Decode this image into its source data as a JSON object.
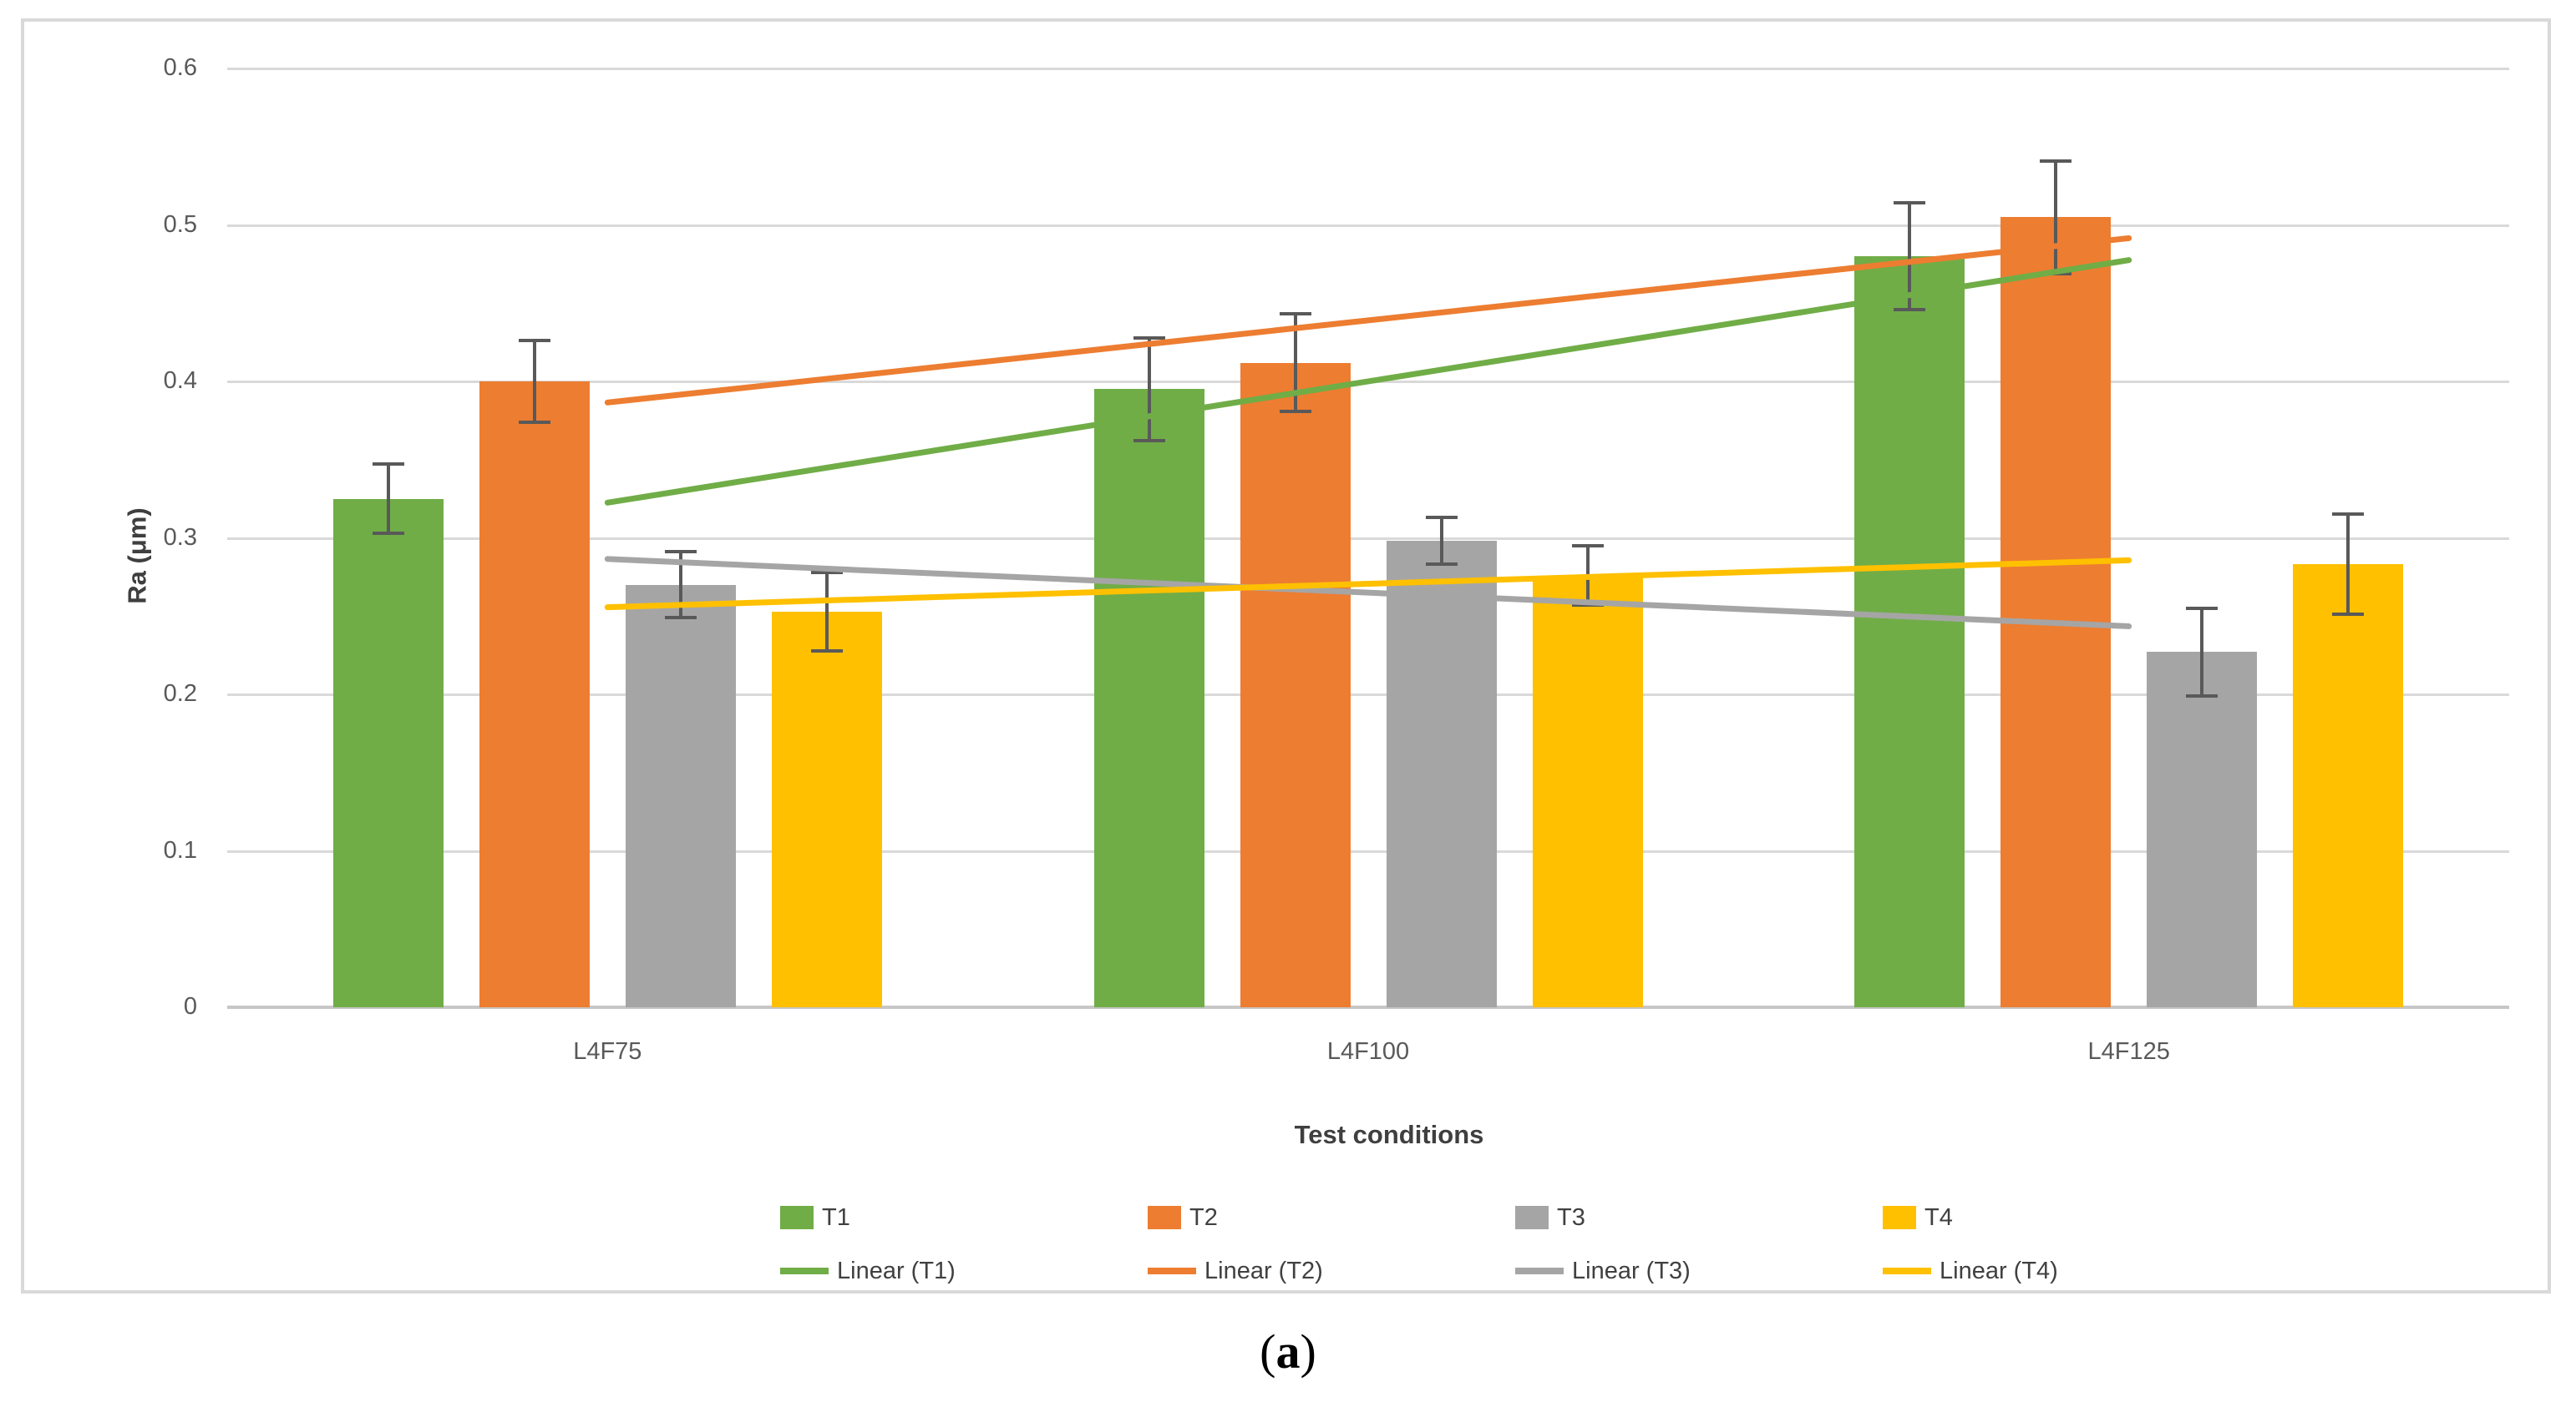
{
  "figure": {
    "caption_open": "(",
    "caption_letter": "a",
    "caption_close": ")"
  },
  "chart_data": {
    "type": "bar",
    "title": "",
    "xlabel": "Test conditions",
    "ylabel": "Ra (μm)",
    "categories": [
      "L4F75",
      "L4F100",
      "L4F125"
    ],
    "series": [
      {
        "name": "T1",
        "color": "#70AD47",
        "values": [
          0.325,
          0.395,
          0.48
        ],
        "errors_plus_minus": [
          0.022,
          0.033,
          0.034
        ],
        "trendline_label": "Linear (T1)"
      },
      {
        "name": "T2",
        "color": "#ED7D31",
        "values": [
          0.4,
          0.412,
          0.505
        ],
        "errors_plus_minus": [
          0.026,
          0.031,
          0.036
        ],
        "trendline_label": "Linear (T2)"
      },
      {
        "name": "T3",
        "color": "#A5A5A5",
        "values": [
          0.27,
          0.298,
          0.227
        ],
        "errors_plus_minus": [
          0.021,
          0.015,
          0.028
        ],
        "trendline_label": "Linear (T3)"
      },
      {
        "name": "T4",
        "color": "#FFC000",
        "values": [
          0.253,
          0.276,
          0.283
        ],
        "errors_plus_minus": [
          0.025,
          0.019,
          0.032
        ],
        "trendline_label": "Linear (T4)"
      }
    ],
    "trendlines": "linear",
    "ylim": [
      0,
      0.6
    ],
    "ytick_step": 0.1,
    "ytick_labels": [
      "0",
      "0.1",
      "0.2",
      "0.3",
      "0.4",
      "0.5",
      "0.6"
    ],
    "grid": true,
    "legend_position": "bottom"
  },
  "colors": {
    "gridline": "#D9D9D9",
    "axis_line": "#C6C6C6",
    "tick_text": "#595959",
    "axis_title_text": "#3F3F3F",
    "error_bar": "#595959",
    "figure_border": "#D9D9D9",
    "background": "#FFFFFF"
  }
}
